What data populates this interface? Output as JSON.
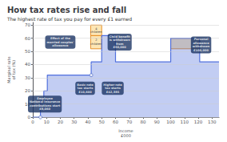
{
  "chart_data": {
    "type": "line",
    "title": "How tax rates rise and fall",
    "subtitle": "The highest rate of tax you pay for every £1 earned",
    "xlabel": "Income\n£000",
    "ylabel": "Marginal rate\nof tax (%)",
    "x": [
      0,
      5.6,
      5.6,
      8.06,
      8.06,
      10.6,
      10.6,
      42.385,
      42.385,
      50,
      50,
      60,
      60,
      100,
      100,
      121,
      121,
      135
    ],
    "values": [
      0,
      0,
      12,
      12,
      20,
      20,
      32,
      32,
      42,
      42,
      62,
      62,
      42,
      42,
      60,
      60,
      42,
      42
    ],
    "xlim": [
      0,
      135
    ],
    "ylim": [
      0,
      72
    ],
    "xticks": [
      0,
      10,
      20,
      30,
      40,
      50,
      60,
      70,
      80,
      90,
      100,
      110,
      120,
      130
    ],
    "yticks": [
      0,
      10,
      20,
      30,
      40,
      50,
      60,
      70
    ],
    "grid": true,
    "open_points": [
      [
        5.6,
        0
      ],
      [
        8.06,
        12
      ],
      [
        42.385,
        32
      ]
    ],
    "boxes": [
      {
        "x": [
          42,
          50
        ],
        "y": [
          62,
          70
        ],
        "label": "4\nchildren"
      },
      {
        "x": [
          42,
          50
        ],
        "y": [
          52,
          62
        ],
        "label": "2\nchildren"
      },
      {
        "x": [
          100,
          121
        ],
        "y": [
          52,
          60
        ]
      }
    ],
    "annotations": [
      {
        "x": 8,
        "y": 10,
        "text": "Employee\nNational Insurance\ncontributions start\n£8,060"
      },
      {
        "x": 20,
        "y": 57,
        "text": "Effect of the\nmarried couples'\nallowance"
      },
      {
        "x": 38,
        "y": 22,
        "text": "Basic-rate\ntax starts\n£10,600"
      },
      {
        "x": 58,
        "y": 22,
        "text": "Higher-rate\ntax starts\n£42,385"
      },
      {
        "x": 63,
        "y": 57,
        "text": "Child benefit\nis withdrawn\nfrom\n£50,000"
      },
      {
        "x": 122,
        "y": 55,
        "text": "Personal\nallowance\nwithdrawn\n£100,000"
      }
    ]
  }
}
